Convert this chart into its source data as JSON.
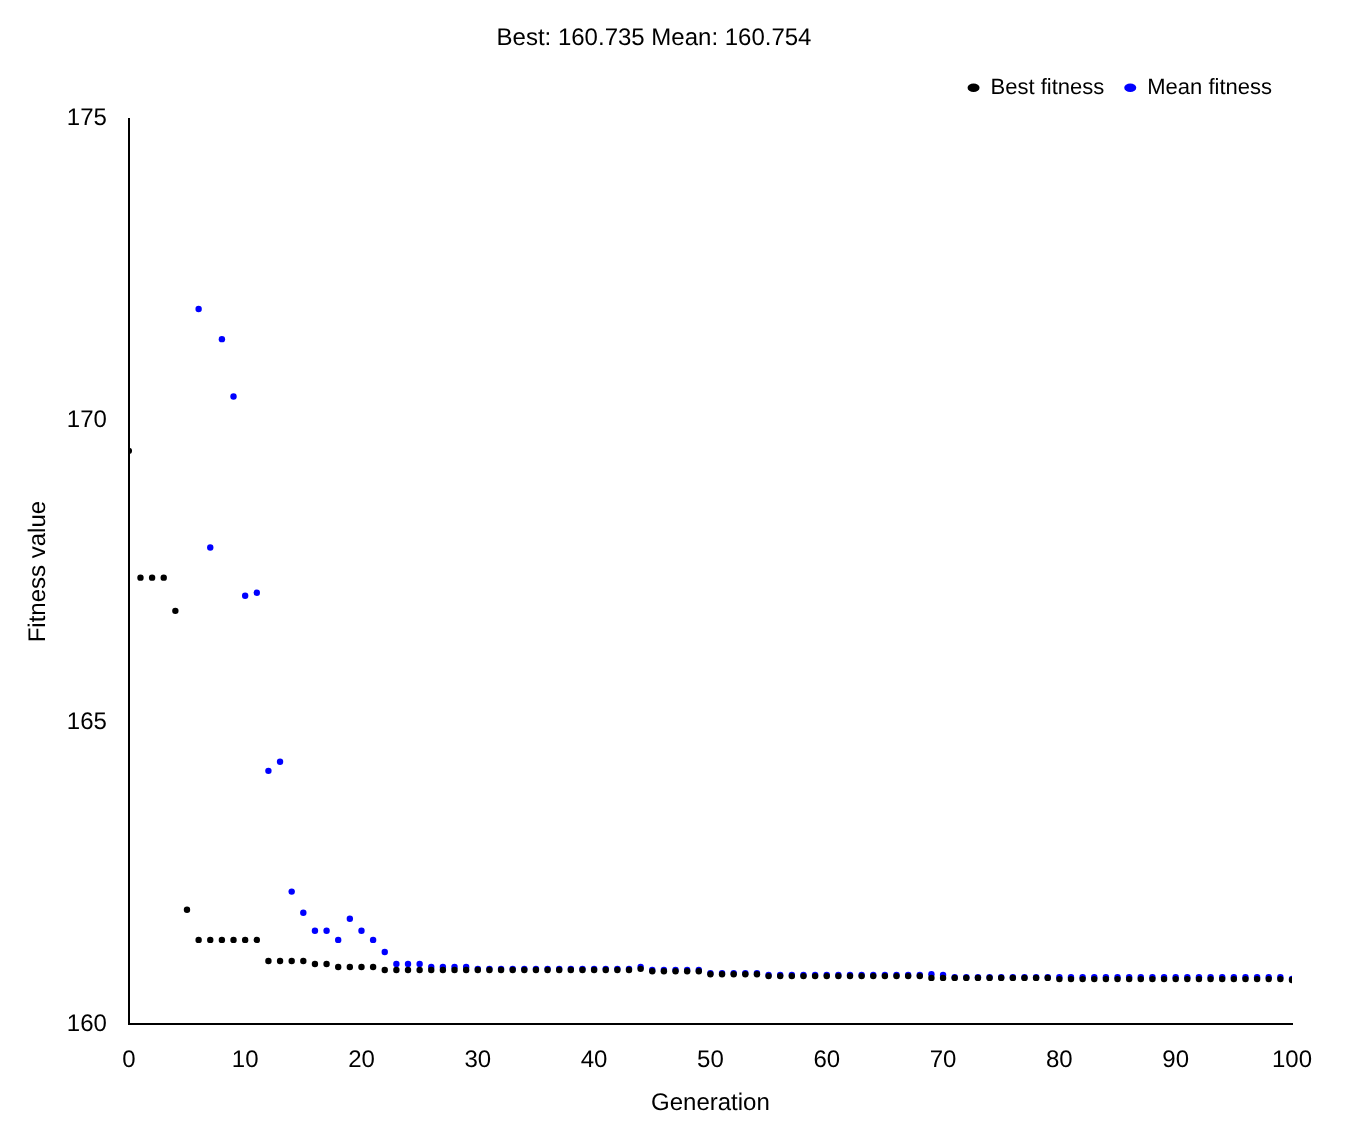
{
  "chart_data": {
    "type": "scatter",
    "title": "Best: 160.735 Mean: 160.754",
    "xlabel": "Generation",
    "ylabel": "Fitness value",
    "x": [
      0,
      1,
      2,
      3,
      4,
      5,
      6,
      7,
      8,
      9,
      10,
      11,
      12,
      13,
      14,
      15,
      16,
      17,
      18,
      19,
      20,
      21,
      22,
      23,
      24,
      25,
      26,
      27,
      28,
      29,
      30,
      31,
      32,
      33,
      34,
      35,
      36,
      37,
      38,
      39,
      40,
      41,
      42,
      43,
      44,
      45,
      46,
      47,
      48,
      49,
      50,
      51,
      52,
      53,
      54,
      55,
      56,
      57,
      58,
      59,
      60,
      61,
      62,
      63,
      64,
      65,
      66,
      67,
      68,
      69,
      70,
      71,
      72,
      73,
      74,
      75,
      76,
      77,
      78,
      79,
      80,
      81,
      82,
      83,
      84,
      85,
      86,
      87,
      88,
      89,
      90,
      91,
      92,
      93,
      94,
      95,
      96,
      97,
      98,
      99,
      100
    ],
    "series": [
      {
        "name": "Best fitness",
        "color": "#000000",
        "values": [
          169.5,
          167.4,
          167.4,
          167.4,
          166.85,
          161.9,
          161.4,
          161.4,
          161.4,
          161.4,
          161.4,
          161.4,
          161.05,
          161.05,
          161.05,
          161.05,
          161.0,
          161.0,
          160.95,
          160.95,
          160.95,
          160.95,
          160.9,
          160.9,
          160.9,
          160.9,
          160.9,
          160.9,
          160.9,
          160.9,
          160.9,
          160.9,
          160.9,
          160.9,
          160.9,
          160.9,
          160.9,
          160.9,
          160.9,
          160.9,
          160.9,
          160.9,
          160.9,
          160.9,
          160.92,
          160.88,
          160.88,
          160.88,
          160.88,
          160.88,
          160.83,
          160.83,
          160.83,
          160.83,
          160.83,
          160.8,
          160.8,
          160.8,
          160.8,
          160.8,
          160.8,
          160.8,
          160.8,
          160.8,
          160.8,
          160.8,
          160.8,
          160.8,
          160.8,
          160.77,
          160.77,
          160.77,
          160.77,
          160.77,
          160.77,
          160.77,
          160.77,
          160.77,
          160.77,
          160.77,
          160.75,
          160.75,
          160.75,
          160.75,
          160.75,
          160.75,
          160.75,
          160.75,
          160.75,
          160.75,
          160.75,
          160.75,
          160.75,
          160.75,
          160.75,
          160.75,
          160.75,
          160.75,
          160.75,
          160.75,
          160.735
        ]
      },
      {
        "name": "Mean fitness",
        "color": "#0000ff",
        "values": [
          null,
          null,
          null,
          null,
          null,
          null,
          171.85,
          167.9,
          171.35,
          170.4,
          167.1,
          167.15,
          164.2,
          164.35,
          162.2,
          161.85,
          161.55,
          161.55,
          161.4,
          161.75,
          161.55,
          161.4,
          161.2,
          161.0,
          161.0,
          161.0,
          160.95,
          160.95,
          160.95,
          160.95,
          160.92,
          160.92,
          160.92,
          160.92,
          160.92,
          160.92,
          160.92,
          160.92,
          160.92,
          160.92,
          160.92,
          160.92,
          160.92,
          160.92,
          160.95,
          160.9,
          160.9,
          160.9,
          160.9,
          160.9,
          160.85,
          160.85,
          160.85,
          160.85,
          160.85,
          160.82,
          160.82,
          160.82,
          160.82,
          160.82,
          160.82,
          160.82,
          160.82,
          160.82,
          160.82,
          160.82,
          160.82,
          160.82,
          160.82,
          160.83,
          160.82,
          160.78,
          160.78,
          160.78,
          160.78,
          160.78,
          160.78,
          160.78,
          160.78,
          160.78,
          160.78,
          160.78,
          160.78,
          160.78,
          160.78,
          160.78,
          160.78,
          160.78,
          160.78,
          160.78,
          160.78,
          160.78,
          160.78,
          160.78,
          160.78,
          160.78,
          160.78,
          160.78,
          160.78,
          160.78,
          160.754
        ]
      }
    ],
    "xlim": [
      0,
      100
    ],
    "xticks": [
      0,
      10,
      20,
      30,
      40,
      50,
      60,
      70,
      80,
      90,
      100
    ],
    "ylim": [
      160,
      175
    ],
    "yticks": [
      160,
      165,
      170,
      175
    ],
    "grid": false,
    "legend": "top right",
    "marker": "circle"
  }
}
